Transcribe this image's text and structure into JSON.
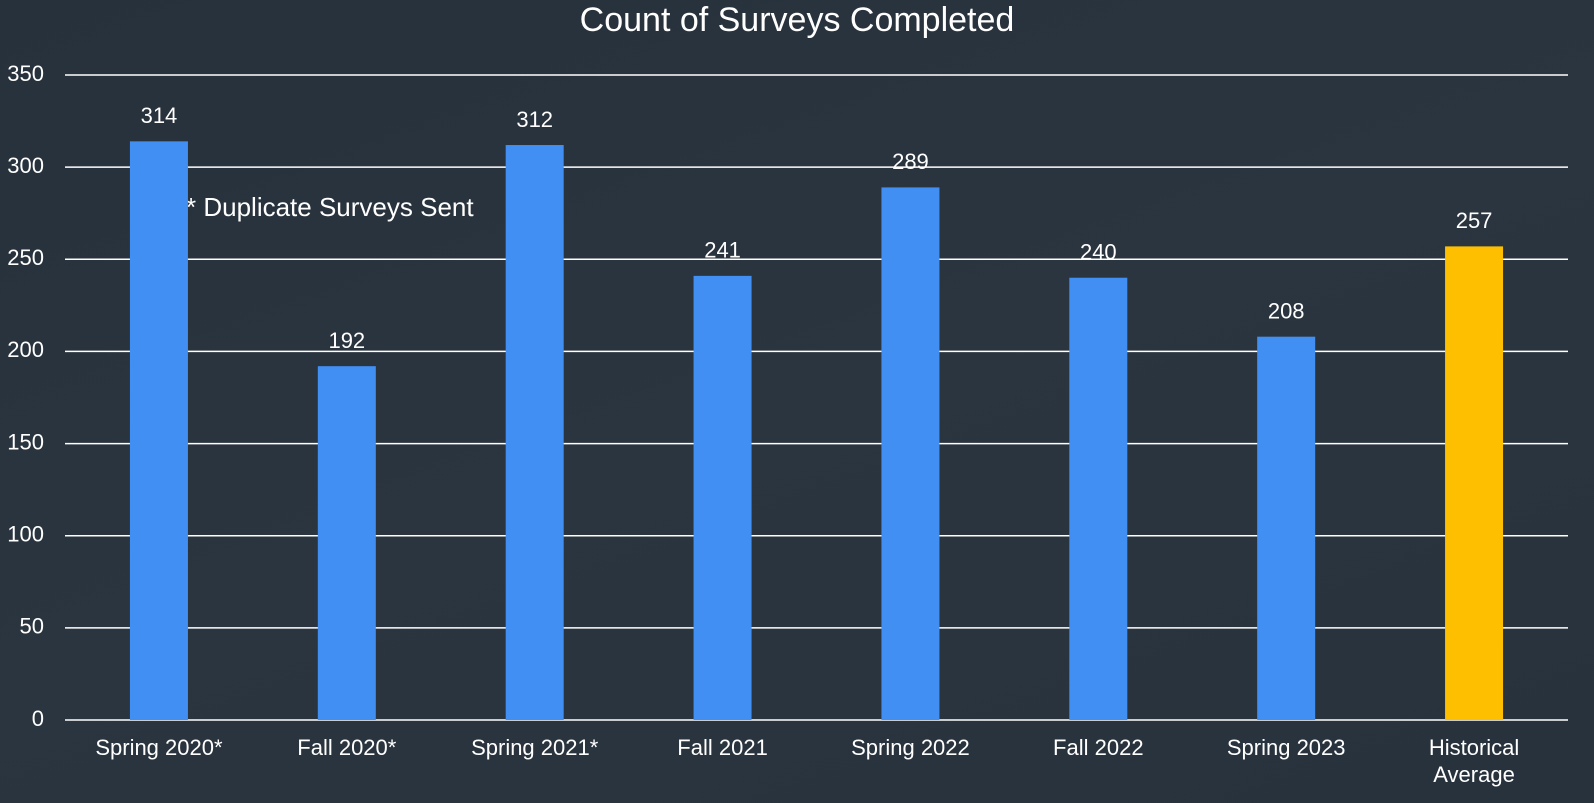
{
  "chart_data": {
    "type": "bar",
    "title": "Count of Surveys Completed",
    "annotation": "* Duplicate Surveys Sent",
    "categories": [
      "Spring 2020*",
      "Fall 2020*",
      "Spring 2021*",
      "Fall 2021",
      "Spring 2022",
      "Fall 2022",
      "Spring 2023",
      "Historical Average"
    ],
    "values": [
      314,
      192,
      312,
      241,
      289,
      240,
      208,
      257
    ],
    "colors": [
      "#418ff3",
      "#418ff3",
      "#418ff3",
      "#418ff3",
      "#418ff3",
      "#418ff3",
      "#418ff3",
      "#fdbf00"
    ],
    "ylim": [
      0,
      350
    ],
    "yticks": [
      0,
      50,
      100,
      150,
      200,
      250,
      300,
      350
    ],
    "grid": true
  }
}
